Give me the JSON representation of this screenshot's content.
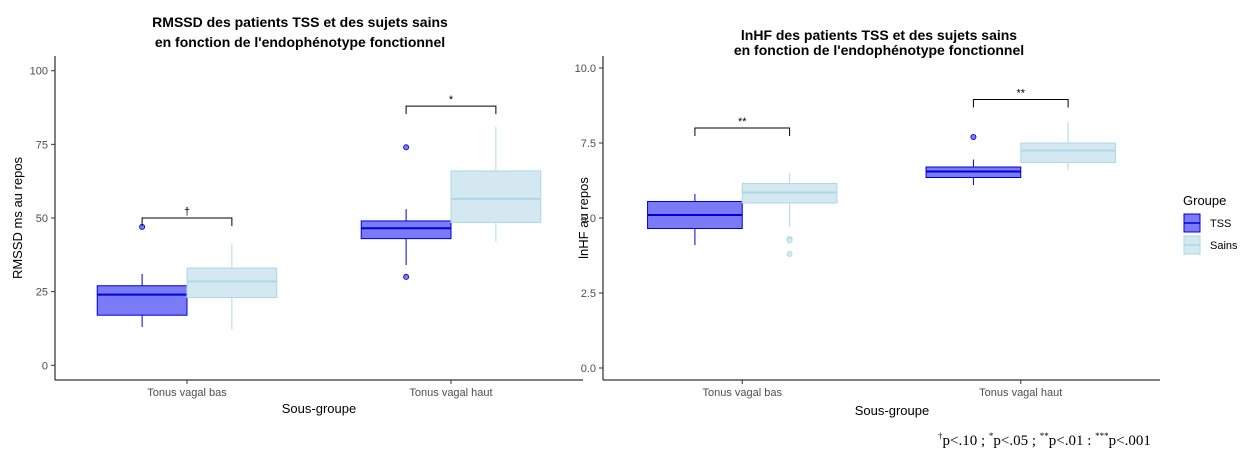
{
  "legend": {
    "title": "Groupe",
    "entries": [
      {
        "name": "TSS",
        "fill": "#7b7bf7",
        "stroke": "#0000d6"
      },
      {
        "name": "Sains",
        "fill": "#d3e8f0",
        "stroke": "#add8e6"
      }
    ]
  },
  "footnote": {
    "parts": [
      {
        "sup": "†",
        "text": "p<.10 ; "
      },
      {
        "sup": "*",
        "text": "p<.05 ; "
      },
      {
        "sup": "**",
        "text": "p<.01 : "
      },
      {
        "sup": "***",
        "text": "p<.001"
      }
    ]
  },
  "chart_data": [
    {
      "type": "box",
      "title_lines": [
        "RMSSD des patients TSS et des sujets sains",
        "en fonction de l'endophénotype fonctionnel"
      ],
      "xlabel": "Sous-groupe",
      "ylabel": "RMSSD ms au repos",
      "ylim": [
        -5,
        105
      ],
      "yticks": [
        0,
        25,
        50,
        75,
        100
      ],
      "ytick_labels": [
        "0",
        "25",
        "50",
        "75",
        "100"
      ],
      "grid": false,
      "categories": [
        "Tonus vagal bas",
        "Tonus vagal haut"
      ],
      "series": [
        {
          "name": "TSS",
          "boxes": [
            {
              "whisker_low": 13,
              "q1": 17,
              "median": 24,
              "q3": 27,
              "whisker_high": 31,
              "outliers": [
                47
              ]
            },
            {
              "whisker_low": 34,
              "q1": 43,
              "median": 46.5,
              "q3": 49,
              "whisker_high": 53,
              "outliers": [
                74,
                30
              ]
            }
          ]
        },
        {
          "name": "Sains",
          "boxes": [
            {
              "whisker_low": 12,
              "q1": 23,
              "median": 28.5,
              "q3": 33,
              "whisker_high": 41,
              "outliers": []
            },
            {
              "whisker_low": 42,
              "q1": 48.5,
              "median": 56.5,
              "q3": 66,
              "whisker_high": 81,
              "outliers": []
            }
          ]
        }
      ],
      "significance": [
        {
          "category": "Tonus vagal bas",
          "y": 50,
          "label": "†"
        },
        {
          "category": "Tonus vagal haut",
          "y": 88,
          "label": "*"
        }
      ]
    },
    {
      "type": "box",
      "title_lines": [
        "lnHF des patients TSS et des sujets sains",
        "en fonction de l'endophénotype fonctionnel"
      ],
      "xlabel": "Sous-groupe",
      "ylabel": "lnHF au repos",
      "ylim": [
        -0.4,
        10.4
      ],
      "yticks": [
        0,
        2.5,
        5,
        7.5,
        10
      ],
      "ytick_labels": [
        "0.0",
        "2.5",
        "5.0",
        "7.5",
        "10.0"
      ],
      "grid": false,
      "categories": [
        "Tonus vagal bas",
        "Tonus vagal haut"
      ],
      "series": [
        {
          "name": "TSS",
          "boxes": [
            {
              "whisker_low": 4.1,
              "q1": 4.65,
              "median": 5.1,
              "q3": 5.55,
              "whisker_high": 5.8,
              "outliers": []
            },
            {
              "whisker_low": 6.1,
              "q1": 6.35,
              "median": 6.55,
              "q3": 6.7,
              "whisker_high": 6.95,
              "outliers": [
                7.7
              ]
            }
          ]
        },
        {
          "name": "Sains",
          "boxes": [
            {
              "whisker_low": 4.7,
              "q1": 5.5,
              "median": 5.85,
              "q3": 6.15,
              "whisker_high": 6.5,
              "outliers": [
                4.3,
                4.25,
                3.8
              ]
            },
            {
              "whisker_low": 6.6,
              "q1": 6.85,
              "median": 7.25,
              "q3": 7.5,
              "whisker_high": 8.2,
              "outliers": []
            }
          ]
        }
      ],
      "significance": [
        {
          "category": "Tonus vagal bas",
          "y": 8.0,
          "label": "**"
        },
        {
          "category": "Tonus vagal haut",
          "y": 8.95,
          "label": "**"
        }
      ]
    }
  ]
}
